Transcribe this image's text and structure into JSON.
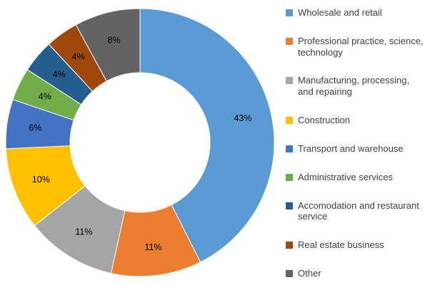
{
  "chart_data": {
    "type": "pie",
    "subtype": "donut",
    "title": "",
    "legend_position": "right",
    "direction": "clockwise",
    "start_angle_deg": 0,
    "inner_radius_ratio": 0.52,
    "categories": [
      "Wholesale and retail",
      "Professional practice, science, technology",
      "Manufacturing, processing, and repairing",
      "Construction",
      "Transport and warehouse",
      "Administrative services",
      "Accomodation and restaurant service",
      "Real estate business",
      "Other"
    ],
    "values": [
      43,
      11,
      11,
      10,
      6,
      4,
      4,
      4,
      8
    ],
    "labels": [
      "43%",
      "11%",
      "11%",
      "10%",
      "6%",
      "4%",
      "4%",
      "4%",
      "8%"
    ],
    "colors": [
      "#5B9BD5",
      "#ED7D31",
      "#A5A5A5",
      "#FFC000",
      "#4472C4",
      "#70AD47",
      "#255E91",
      "#9E480E",
      "#636363"
    ],
    "label_color": "#000000",
    "legend_text_color": "#404040"
  }
}
